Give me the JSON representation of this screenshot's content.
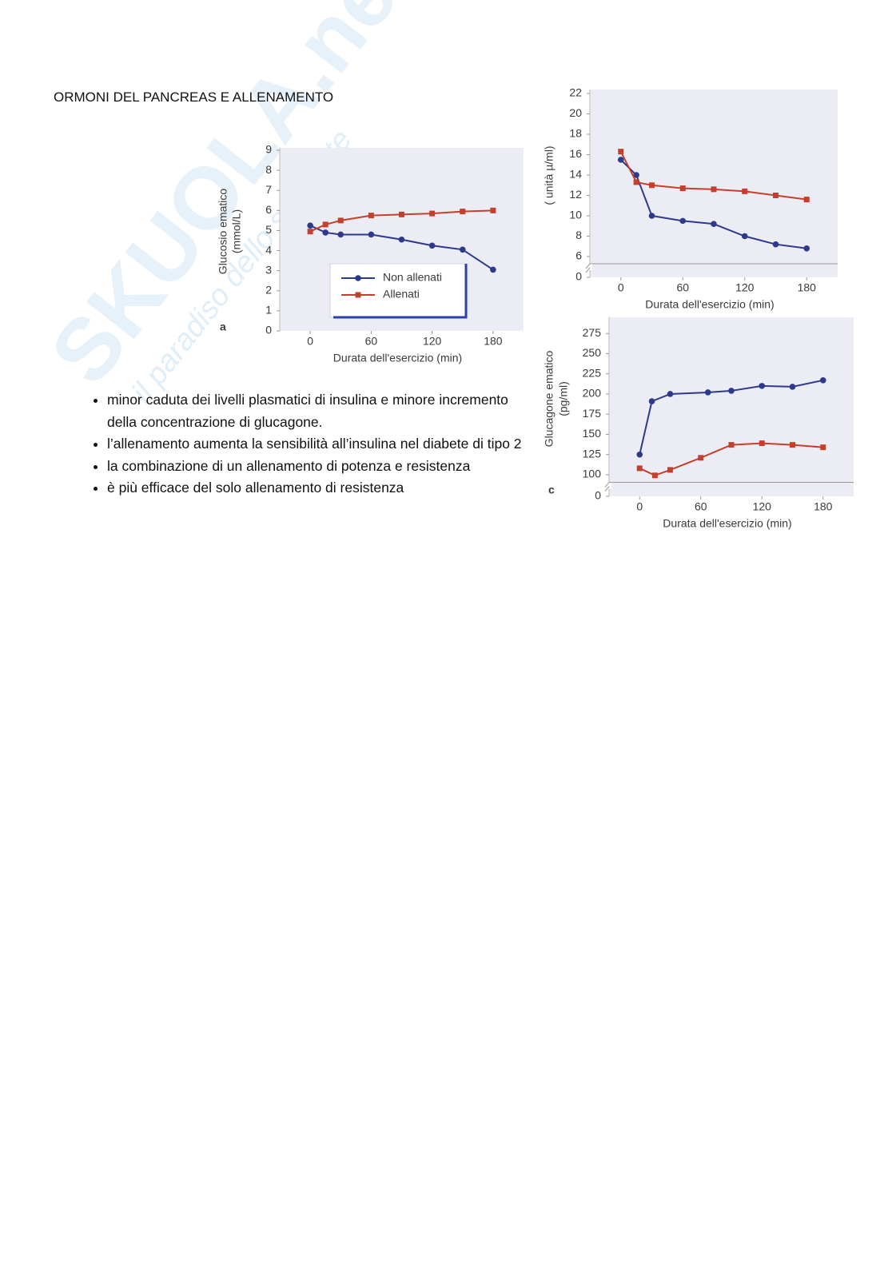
{
  "title": "ORMONI DEL PANCREAS E ALLENAMENTO",
  "bullets": [
    "minor caduta dei livelli plasmatici di insulina e minore incremento della concentrazione di glucagone.",
    "l’allenamento aumenta la sensibilità all’insulina nel diabete di tipo 2",
    "la combinazione di un allenamento di potenza e resistenza",
    "è più efficace del solo allenamento di resistenza"
  ],
  "watermark": {
    "brand": "SKUOLA.net",
    "slogan": "il paradiso dello studente"
  },
  "chart_data": [
    {
      "type": "line",
      "panel": "a",
      "y_label": [
        "Glucosio ematico",
        "(mmol/L)"
      ],
      "x_label": "Durata dell'esercizio (min)",
      "xlim": [
        -30,
        210
      ],
      "xticks": [
        0,
        60,
        120,
        180
      ],
      "ylim": [
        0,
        9
      ],
      "yticks": [
        0,
        1,
        2,
        3,
        4,
        5,
        6,
        7,
        8,
        9
      ],
      "legend": "bottom",
      "series": [
        {
          "name": "Non allenati",
          "color": "#2d3a8c",
          "marker": "circle",
          "x": [
            0,
            15,
            30,
            60,
            90,
            120,
            150,
            180
          ],
          "values": [
            5.25,
            4.9,
            4.8,
            4.8,
            4.55,
            4.25,
            4.05,
            3.05
          ]
        },
        {
          "name": "Allenati",
          "color": "#c4402c",
          "marker": "square",
          "x": [
            0,
            15,
            30,
            60,
            90,
            120,
            150,
            180
          ],
          "values": [
            4.95,
            5.3,
            5.5,
            5.75,
            5.8,
            5.85,
            5.95,
            6.0
          ]
        }
      ]
    },
    {
      "type": "line",
      "y_label": [
        "( unità µ/ml)"
      ],
      "x_label": "Durata dell'esercizio (min)",
      "xlim": [
        -30,
        210
      ],
      "xticks": [
        0,
        60,
        120,
        180
      ],
      "ylim": [
        0,
        22
      ],
      "yticks": [
        0,
        6,
        8,
        10,
        12,
        14,
        16,
        18,
        20,
        22
      ],
      "y_break": true,
      "series": [
        {
          "color": "#2d3a8c",
          "marker": "circle",
          "x": [
            0,
            15,
            30,
            60,
            90,
            120,
            150,
            180
          ],
          "values": [
            15.5,
            14.0,
            10.0,
            9.5,
            9.2,
            8.0,
            7.2,
            6.8
          ]
        },
        {
          "color": "#c4402c",
          "marker": "square",
          "x": [
            0,
            15,
            30,
            60,
            90,
            120,
            150,
            180
          ],
          "values": [
            16.3,
            13.3,
            13.0,
            12.7,
            12.6,
            12.4,
            12.0,
            11.6
          ]
        }
      ]
    },
    {
      "type": "line",
      "panel": "c",
      "y_label": [
        "Glucagone ematico",
        "(pg/ml)"
      ],
      "x_label": "Durata dell'esercizio (min)",
      "xlim": [
        -30,
        210
      ],
      "xticks": [
        0,
        60,
        120,
        180
      ],
      "ylim": [
        0,
        295
      ],
      "yticks": [
        0,
        100,
        125,
        150,
        175,
        200,
        225,
        250,
        275
      ],
      "y_break": true,
      "series": [
        {
          "color": "#2d3a8c",
          "marker": "circle",
          "x": [
            0,
            12,
            30,
            67,
            90,
            120,
            150,
            180
          ],
          "values": [
            125,
            191,
            200,
            202,
            204,
            210,
            209,
            217
          ]
        },
        {
          "color": "#c4402c",
          "marker": "square",
          "x": [
            0,
            15,
            30,
            60,
            90,
            120,
            150,
            180
          ],
          "values": [
            108,
            97,
            106,
            121,
            137,
            139,
            137,
            134
          ]
        }
      ]
    }
  ]
}
